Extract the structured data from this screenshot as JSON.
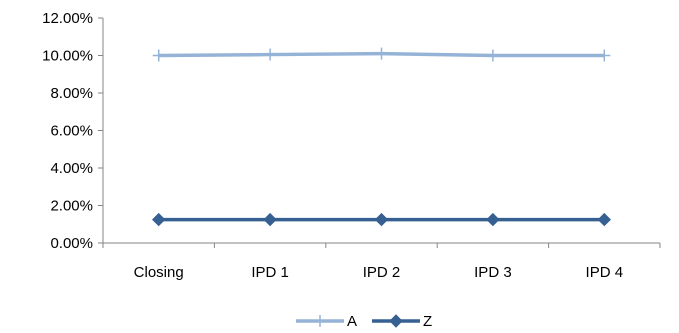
{
  "chart_data": {
    "type": "line",
    "categories": [
      "Closing",
      "IPD 1",
      "IPD 2",
      "IPD 3",
      "IPD 4"
    ],
    "ylim": [
      0,
      12
    ],
    "y_tick_values": [
      0,
      2,
      4,
      6,
      8,
      10,
      12
    ],
    "y_tick_labels": [
      "0.00%",
      "2.00%",
      "4.00%",
      "6.00%",
      "8.00%",
      "10.00%",
      "12.00%"
    ],
    "grid": false,
    "legend_position": "bottom",
    "series": [
      {
        "name": "A",
        "color": "#95b3d7",
        "marker": "plus",
        "values": [
          10.0,
          10.05,
          10.1,
          10.0,
          10.0
        ]
      },
      {
        "name": "Z",
        "color": "#376092",
        "marker": "diamond",
        "values": [
          1.25,
          1.25,
          1.25,
          1.25,
          1.25
        ]
      }
    ]
  }
}
